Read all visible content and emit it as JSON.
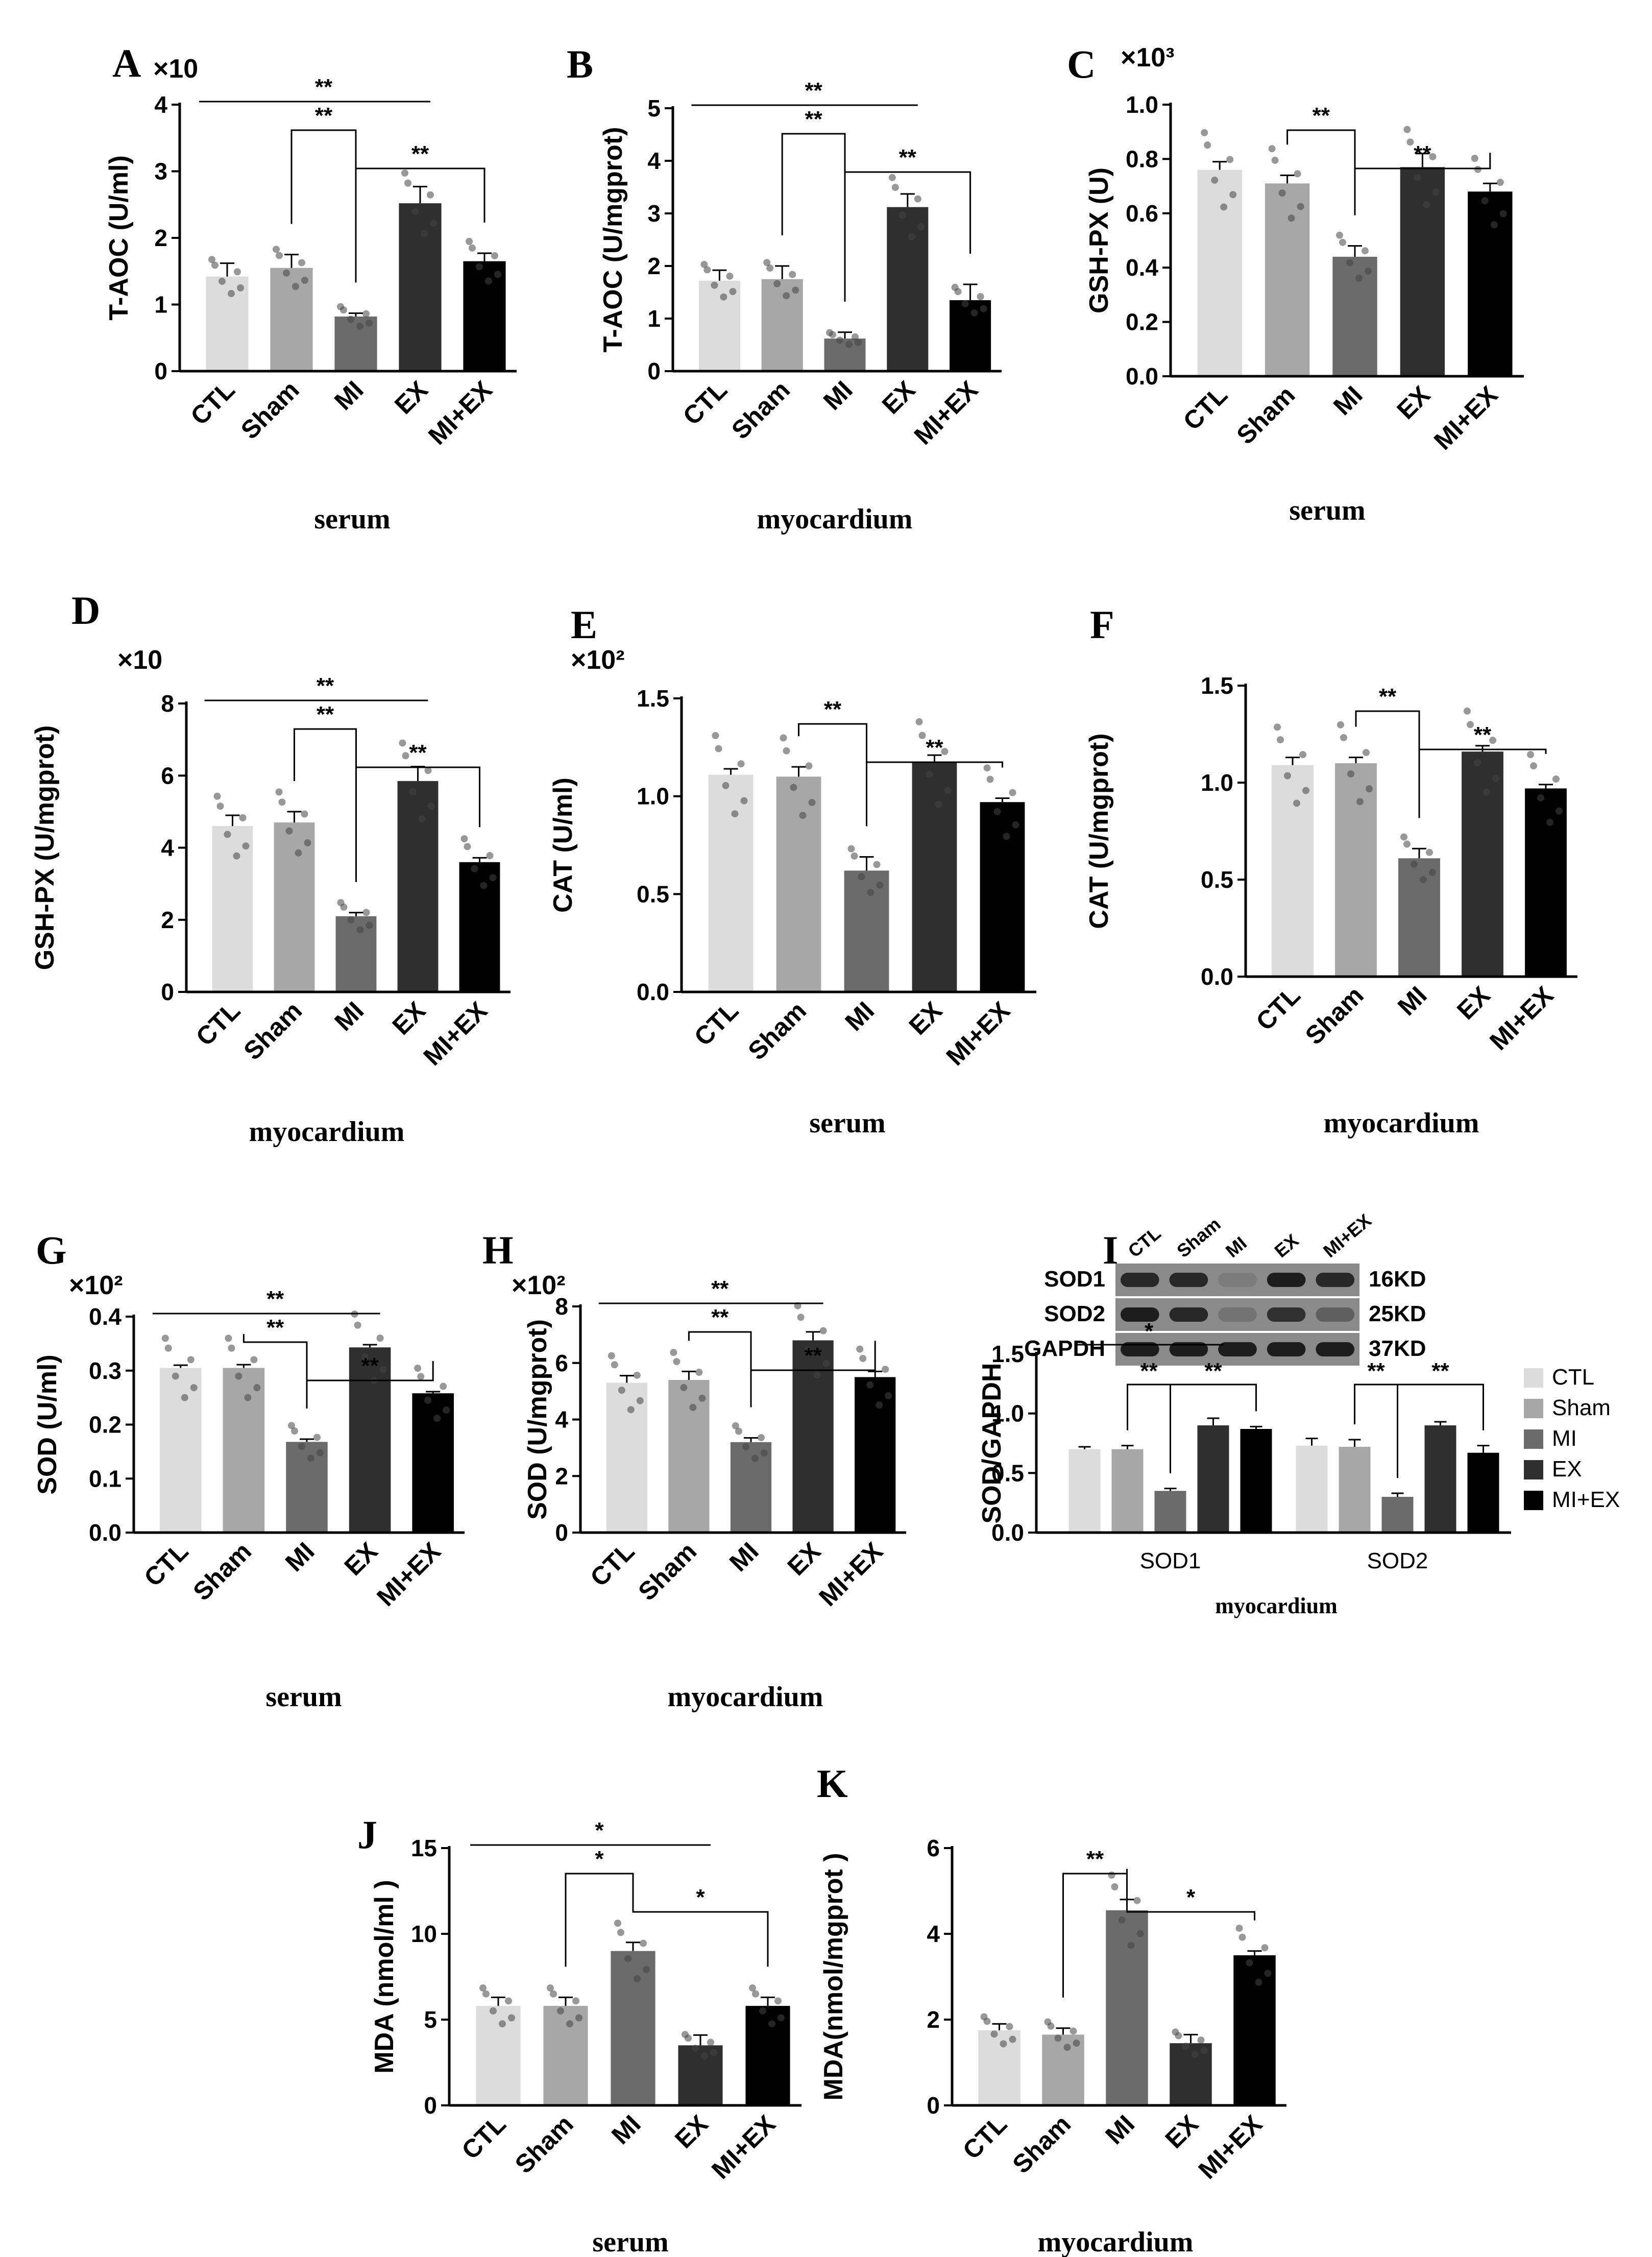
{
  "colors": {
    "CTL": "#dcdcdc",
    "Sham": "#a7a7a7",
    "MI": "#6b6b6b",
    "EX": "#2f2f2f",
    "MI+EX": "#000000"
  },
  "chart_data": [
    {
      "id": "A",
      "letter": "A",
      "type": "bar",
      "scale": "×10",
      "ylabel": "T-AOC (U/ml)",
      "sample": "serum",
      "categories": [
        "CTL",
        "Sham",
        "MI",
        "EX",
        "MI+EX"
      ],
      "values": [
        1.42,
        1.55,
        0.82,
        2.52,
        1.65
      ],
      "errors": [
        0.2,
        0.2,
        0.05,
        0.25,
        0.12
      ],
      "ylim": [
        0,
        4
      ],
      "yticks": [
        0,
        1,
        2,
        3,
        4
      ],
      "ytick_labels": [
        "0",
        "1",
        "2",
        "3",
        "4"
      ],
      "significance": [
        {
          "from": 0,
          "to": 3,
          "label": "**",
          "style": "line"
        },
        {
          "from": 1,
          "to": 2,
          "label": "**",
          "style": "bracket"
        },
        {
          "from": 2,
          "to": 4,
          "label": "**",
          "style": "bracket"
        }
      ]
    },
    {
      "id": "B",
      "letter": "B",
      "type": "bar",
      "scale": "",
      "ylabel": "T-AOC (U/mgprot)",
      "sample": "myocardium",
      "categories": [
        "CTL",
        "Sham",
        "MI",
        "EX",
        "MI+EX"
      ],
      "values": [
        1.72,
        1.75,
        0.62,
        3.12,
        1.35
      ],
      "errors": [
        0.2,
        0.25,
        0.12,
        0.25,
        0.3
      ],
      "ylim": [
        0,
        5
      ],
      "yticks": [
        0,
        1,
        2,
        3,
        4,
        5
      ],
      "ytick_labels": [
        "0",
        "1",
        "2",
        "3",
        "4",
        "5"
      ],
      "significance": [
        {
          "from": 0,
          "to": 3,
          "label": "**",
          "style": "line"
        },
        {
          "from": 1,
          "to": 2,
          "label": "**",
          "style": "bracket"
        },
        {
          "from": 2,
          "to": 4,
          "label": "**",
          "style": "bracket"
        }
      ]
    },
    {
      "id": "C",
      "letter": "C",
      "type": "bar",
      "scale": "×10³",
      "ylabel": "GSH-PX (U)",
      "sample": "serum",
      "categories": [
        "CTL",
        "Sham",
        "MI",
        "EX",
        "MI+EX"
      ],
      "values": [
        0.76,
        0.71,
        0.44,
        0.77,
        0.68
      ],
      "errors": [
        0.03,
        0.03,
        0.04,
        0.05,
        0.03
      ],
      "ylim": [
        0,
        1.0
      ],
      "yticks": [
        0,
        0.2,
        0.4,
        0.6,
        0.8,
        1.0
      ],
      "ytick_labels": [
        "0.0",
        "0.2",
        "0.4",
        "0.6",
        "0.8",
        "1.0"
      ],
      "significance": [
        {
          "from": 1,
          "to": 2,
          "label": "**",
          "style": "bracket"
        },
        {
          "from": 2,
          "to": 4,
          "label": "**",
          "style": "bracket"
        }
      ]
    },
    {
      "id": "D",
      "letter": "D",
      "type": "bar",
      "scale": "×10",
      "ylabel": "GSH-PX (U/mgprot)",
      "sample": "myocardium",
      "categories": [
        "CTL",
        "Sham",
        "MI",
        "EX",
        "MI+EX"
      ],
      "values": [
        4.6,
        4.7,
        2.1,
        5.85,
        3.6
      ],
      "errors": [
        0.3,
        0.3,
        0.1,
        0.4,
        0.12
      ],
      "ylim": [
        0,
        8
      ],
      "yticks": [
        0,
        2,
        4,
        6,
        8
      ],
      "ytick_labels": [
        "0",
        "2",
        "4",
        "6",
        "8"
      ],
      "significance": [
        {
          "from": 0,
          "to": 3,
          "label": "**",
          "style": "line"
        },
        {
          "from": 1,
          "to": 2,
          "label": "**",
          "style": "bracket"
        },
        {
          "from": 2,
          "to": 4,
          "label": "**",
          "style": "bracket"
        }
      ]
    },
    {
      "id": "E",
      "letter": "E",
      "type": "bar",
      "scale": "×10²",
      "ylabel": "CAT (U/ml)",
      "sample": "serum",
      "categories": [
        "CTL",
        "Sham",
        "MI",
        "EX",
        "MI+EX"
      ],
      "values": [
        1.11,
        1.1,
        0.62,
        1.17,
        0.97
      ],
      "errors": [
        0.03,
        0.05,
        0.07,
        0.04,
        0.02
      ],
      "ylim": [
        0,
        1.5
      ],
      "yticks": [
        0,
        0.5,
        1.0,
        1.5
      ],
      "ytick_labels": [
        "0.0",
        "0.5",
        "1.0",
        "1.5"
      ],
      "significance": [
        {
          "from": 1,
          "to": 2,
          "label": "**",
          "style": "bracket"
        },
        {
          "from": 2,
          "to": 4,
          "label": "**",
          "style": "bracket"
        }
      ]
    },
    {
      "id": "F",
      "letter": "F",
      "type": "bar",
      "scale": "",
      "ylabel": "CAT (U/mgprot)",
      "sample": "myocardium",
      "categories": [
        "CTL",
        "Sham",
        "MI",
        "EX",
        "MI+EX"
      ],
      "values": [
        1.09,
        1.1,
        0.61,
        1.16,
        0.97
      ],
      "errors": [
        0.04,
        0.03,
        0.05,
        0.03,
        0.02
      ],
      "ylim": [
        0,
        1.5
      ],
      "yticks": [
        0,
        0.5,
        1.0,
        1.5
      ],
      "ytick_labels": [
        "0.0",
        "0.5",
        "1.0",
        "1.5"
      ],
      "significance": [
        {
          "from": 1,
          "to": 2,
          "label": "**",
          "style": "bracket"
        },
        {
          "from": 2,
          "to": 4,
          "label": "**",
          "style": "bracket"
        }
      ]
    },
    {
      "id": "G",
      "letter": "G",
      "type": "bar",
      "scale": "×10²",
      "ylabel": "SOD (U/ml)",
      "sample": "serum",
      "categories": [
        "CTL",
        "Sham",
        "MI",
        "EX",
        "MI+EX"
      ],
      "values": [
        0.305,
        0.305,
        0.168,
        0.343,
        0.258
      ],
      "errors": [
        0.005,
        0.006,
        0.005,
        0.005,
        0.003
      ],
      "ylim": [
        0,
        0.4
      ],
      "yticks": [
        0,
        0.1,
        0.2,
        0.3,
        0.4
      ],
      "ytick_labels": [
        "0.0",
        "0.1",
        "0.2",
        "0.3",
        "0.4"
      ],
      "significance": [
        {
          "from": 0,
          "to": 3,
          "label": "**",
          "style": "line"
        },
        {
          "from": 1,
          "to": 2,
          "label": "**",
          "style": "bracket"
        },
        {
          "from": 2,
          "to": 4,
          "label": "**",
          "style": "bracket"
        }
      ]
    },
    {
      "id": "H",
      "letter": "H",
      "type": "bar",
      "scale": "×10²",
      "ylabel": "SOD (U/mgprot)",
      "sample": "myocardium",
      "categories": [
        "CTL",
        "Sham",
        "MI",
        "EX",
        "MI+EX"
      ],
      "values": [
        5.3,
        5.4,
        3.2,
        6.8,
        5.5
      ],
      "errors": [
        0.25,
        0.3,
        0.15,
        0.3,
        0.2
      ],
      "ylim": [
        0,
        8
      ],
      "yticks": [
        0,
        2,
        4,
        6,
        8
      ],
      "ytick_labels": [
        "0",
        "2",
        "4",
        "6",
        "8"
      ],
      "significance": [
        {
          "from": 0,
          "to": 3,
          "label": "**",
          "style": "line"
        },
        {
          "from": 1,
          "to": 2,
          "label": "**",
          "style": "bracket"
        },
        {
          "from": 2,
          "to": 4,
          "label": "**",
          "style": "bracket"
        }
      ]
    },
    {
      "id": "I",
      "letter": "I",
      "type": "bar",
      "scale": "",
      "ylabel": "SOD/GAPDH",
      "sample": "myocardium",
      "groups": [
        "SOD1",
        "SOD2"
      ],
      "series_names": [
        "CTL",
        "Sham",
        "MI",
        "EX",
        "MI+EX"
      ],
      "series": [
        {
          "name": "CTL",
          "values": [
            0.7,
            0.73
          ]
        },
        {
          "name": "Sham",
          "values": [
            0.7,
            0.72
          ]
        },
        {
          "name": "MI",
          "values": [
            0.35,
            0.3
          ]
        },
        {
          "name": "EX",
          "values": [
            0.9,
            0.9
          ]
        },
        {
          "name": "MI+EX",
          "values": [
            0.87,
            0.67
          ]
        }
      ],
      "errors": [
        [
          0.02,
          0.06
        ],
        [
          0.03,
          0.06
        ],
        [
          0.02,
          0.03
        ],
        [
          0.06,
          0.03
        ],
        [
          0.02,
          0.06
        ]
      ],
      "ylim": [
        0,
        1.5
      ],
      "yticks": [
        0,
        0.5,
        1.0,
        1.5
      ],
      "ytick_labels": [
        "0.0",
        "0.5",
        "1.0",
        "1.5"
      ],
      "significance": [
        {
          "group": 0,
          "from": 0,
          "to": 3,
          "label": "*",
          "style": "line"
        },
        {
          "group": 0,
          "from": 1,
          "to": 2,
          "label": "**",
          "style": "bracket"
        },
        {
          "group": 0,
          "from": 2,
          "to": 4,
          "label": "**",
          "style": "bracket"
        },
        {
          "group": 1,
          "from": 1,
          "to": 2,
          "label": "**",
          "style": "bracket"
        },
        {
          "group": 1,
          "from": 2,
          "to": 4,
          "label": "**",
          "style": "bracket"
        }
      ],
      "legend": [
        "CTL",
        "Sham",
        "MI",
        "EX",
        "MI+EX"
      ],
      "blot": {
        "lanes": [
          "CTL",
          "Sham",
          "MI",
          "EX",
          "MI+EX"
        ],
        "rows": [
          {
            "protein": "SOD1",
            "size": "16KD",
            "intensity": [
              0.85,
              0.85,
              0.4,
              0.9,
              0.85
            ]
          },
          {
            "protein": "SOD2",
            "size": "25KD",
            "intensity": [
              0.9,
              0.85,
              0.45,
              0.8,
              0.55
            ]
          },
          {
            "protein": "GAPDH",
            "size": "37KD",
            "intensity": [
              0.9,
              0.9,
              0.9,
              0.9,
              0.9
            ]
          }
        ]
      }
    },
    {
      "id": "J",
      "letter": "J",
      "type": "bar",
      "scale": "",
      "ylabel": "MDA (nmol/ml )",
      "sample": "serum",
      "categories": [
        "CTL",
        "Sham",
        "MI",
        "EX",
        "MI+EX"
      ],
      "values": [
        5.8,
        5.8,
        9.0,
        3.5,
        5.8
      ],
      "errors": [
        0.5,
        0.5,
        0.5,
        0.6,
        0.5
      ],
      "ylim": [
        0,
        15
      ],
      "yticks": [
        0,
        5,
        10,
        15
      ],
      "ytick_labels": [
        "0",
        "5",
        "10",
        "15"
      ],
      "significance": [
        {
          "from": 0,
          "to": 3,
          "label": "*",
          "style": "line"
        },
        {
          "from": 1,
          "to": 2,
          "label": "*",
          "style": "bracket"
        },
        {
          "from": 2,
          "to": 4,
          "label": "*",
          "style": "bracket"
        }
      ]
    },
    {
      "id": "K",
      "letter": "K",
      "type": "bar",
      "scale": "",
      "ylabel": "MDA(nmol/mgprot )",
      "sample": "myocardium",
      "categories": [
        "CTL",
        "Sham",
        "MI",
        "EX",
        "MI+EX"
      ],
      "values": [
        1.75,
        1.65,
        4.55,
        1.45,
        3.5
      ],
      "errors": [
        0.15,
        0.15,
        0.25,
        0.2,
        0.1
      ],
      "ylim": [
        0,
        6
      ],
      "yticks": [
        0,
        2,
        4,
        6
      ],
      "ytick_labels": [
        "0",
        "2",
        "4",
        "6"
      ],
      "significance": [
        {
          "from": 1,
          "to": 2,
          "label": "**",
          "style": "bracket"
        },
        {
          "from": 2,
          "to": 4,
          "label": "*",
          "style": "bracket"
        }
      ]
    }
  ]
}
